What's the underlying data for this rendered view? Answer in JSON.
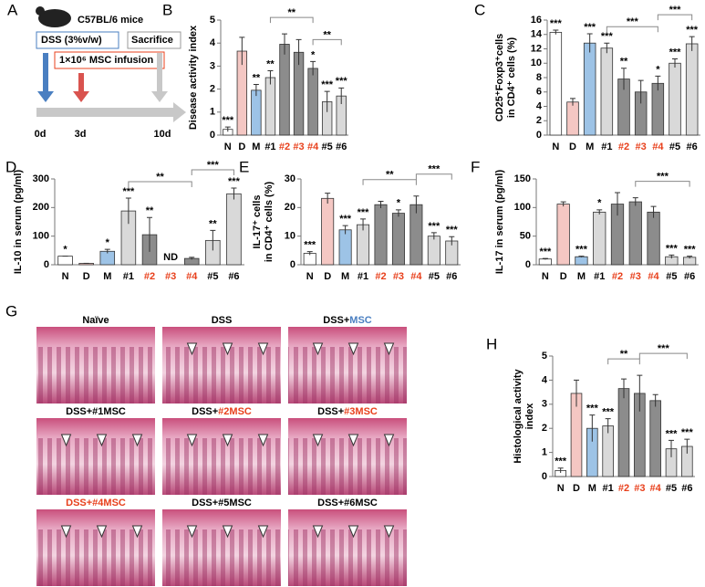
{
  "diagram": {
    "label": "A",
    "strain": "C57BL/6 mice",
    "dss": "DSS (3%v/w)",
    "infusion": "1×10⁶ MSC infusion",
    "end": "Sacrifice",
    "days": [
      "0d",
      "3d",
      "10d"
    ]
  },
  "chart_data": [
    {
      "type": "bar",
      "label": "B",
      "ylabel": [
        "Disease activity index"
      ],
      "categories": [
        "N",
        "D",
        "M",
        "#1",
        "#2",
        "#3",
        "#4",
        "#5",
        "#6"
      ],
      "category_colors": [
        "#000000",
        "#000000",
        "#000000",
        "#000000",
        "#e8401c",
        "#e8401c",
        "#e8401c",
        "#000000",
        "#000000"
      ],
      "colors": [
        "#ffffff",
        "#f4c7c3",
        "#9dc3e6",
        "#d9d9d9",
        "#8c8c8c",
        "#8c8c8c",
        "#8c8c8c",
        "#d9d9d9",
        "#d9d9d9"
      ],
      "values": [
        0.25,
        3.65,
        1.95,
        2.5,
        3.95,
        3.6,
        2.9,
        1.45,
        1.7
      ],
      "errors": [
        0.1,
        0.6,
        0.25,
        0.3,
        0.45,
        0.55,
        0.3,
        0.45,
        0.35
      ],
      "stars": [
        "***",
        null,
        "**",
        "**",
        null,
        null,
        "*",
        "***",
        "***"
      ],
      "brackets": [
        {
          "label": "**",
          "left": "#1",
          "right": "#4"
        },
        {
          "label": "**",
          "left": "#4",
          "right": "#6"
        }
      ],
      "ylim": [
        0,
        5
      ],
      "yticks": [
        0,
        1,
        2,
        3,
        4,
        5
      ]
    },
    {
      "type": "bar",
      "label": "C",
      "ylabel": [
        "CD25⁺Foxp3⁺cells",
        "in CD4⁺ cells (%)"
      ],
      "categories": [
        "N",
        "D",
        "M",
        "#1",
        "#2",
        "#3",
        "#4",
        "#5",
        "#6"
      ],
      "category_colors": [
        "#000000",
        "#000000",
        "#000000",
        "#000000",
        "#e8401c",
        "#e8401c",
        "#e8401c",
        "#000000",
        "#000000"
      ],
      "colors": [
        "#ffffff",
        "#f4c7c3",
        "#9dc3e6",
        "#d9d9d9",
        "#8c8c8c",
        "#8c8c8c",
        "#8c8c8c",
        "#d9d9d9",
        "#d9d9d9"
      ],
      "values": [
        14.3,
        4.6,
        12.8,
        12.1,
        7.8,
        6,
        7.2,
        10,
        12.7
      ],
      "errors": [
        0.3,
        0.5,
        1.3,
        0.7,
        1.5,
        1.6,
        1,
        0.6,
        1
      ],
      "stars": [
        "***",
        null,
        "***",
        "***",
        "**",
        null,
        "*",
        "***",
        "***"
      ],
      "brackets": [
        {
          "label": "***",
          "left": "#1",
          "right": "#4"
        },
        {
          "label": "***",
          "left": "#4",
          "right": "#6"
        }
      ],
      "ylim": [
        0,
        16
      ],
      "yticks": [
        0,
        2,
        4,
        6,
        8,
        10,
        12,
        14,
        16
      ]
    },
    {
      "type": "bar",
      "label": "D",
      "ylabel": [
        "IL-10  in serum (pg/ml)"
      ],
      "categories": [
        "N",
        "D",
        "M",
        "#1",
        "#2",
        "#3",
        "#4",
        "#5",
        "#6"
      ],
      "category_colors": [
        "#000000",
        "#000000",
        "#000000",
        "#000000",
        "#e8401c",
        "#e8401c",
        "#e8401c",
        "#000000",
        "#000000"
      ],
      "colors": [
        "#ffffff",
        "#f4c7c3",
        "#9dc3e6",
        "#d9d9d9",
        "#8c8c8c",
        "#8c8c8c",
        "#8c8c8c",
        "#d9d9d9",
        "#d9d9d9"
      ],
      "values": [
        30,
        5,
        47,
        188,
        105,
        null,
        22,
        85,
        248
      ],
      "errors": [
        0,
        0,
        7,
        45,
        60,
        null,
        4,
        35,
        20
      ],
      "value_labels": [
        null,
        null,
        null,
        null,
        null,
        "ND",
        null,
        null,
        null
      ],
      "stars": [
        "*",
        null,
        "*",
        "***",
        "**",
        null,
        null,
        "**",
        "***"
      ],
      "brackets": [
        {
          "label": "**",
          "left": "#1",
          "right": "#4"
        },
        {
          "label": "***",
          "left": "#4",
          "right": "#6"
        }
      ],
      "ylim": [
        0,
        300
      ],
      "yticks": [
        0,
        100,
        200,
        300
      ]
    },
    {
      "type": "bar",
      "label": "E",
      "ylabel": [
        "IL-17⁺ cells",
        "in CD4⁺ cells (%)"
      ],
      "categories": [
        "N",
        "D",
        "M",
        "#1",
        "#2",
        "#3",
        "#4",
        "#5",
        "#6"
      ],
      "category_colors": [
        "#000000",
        "#000000",
        "#000000",
        "#000000",
        "#e8401c",
        "#e8401c",
        "#e8401c",
        "#000000",
        "#000000"
      ],
      "colors": [
        "#ffffff",
        "#f4c7c3",
        "#9dc3e6",
        "#d9d9d9",
        "#8c8c8c",
        "#8c8c8c",
        "#8c8c8c",
        "#d9d9d9",
        "#d9d9d9"
      ],
      "values": [
        4,
        23.2,
        12.2,
        14,
        21,
        18,
        21,
        10,
        8.3
      ],
      "errors": [
        0.6,
        1.8,
        1.5,
        2,
        1.2,
        1.2,
        3,
        1.2,
        1.5
      ],
      "stars": [
        "***",
        null,
        "***",
        "***",
        null,
        "*",
        null,
        "***",
        "***"
      ],
      "brackets": [
        {
          "label": "**",
          "left": "#1",
          "right": "#4"
        },
        {
          "label": "***",
          "left": "#4",
          "right": "#6"
        }
      ],
      "ylim": [
        0,
        30
      ],
      "yticks": [
        0,
        10,
        20,
        30
      ]
    },
    {
      "type": "bar",
      "label": "F",
      "ylabel": [
        "IL-17  in serum (pg/ml)"
      ],
      "categories": [
        "N",
        "D",
        "M",
        "#1",
        "#2",
        "#3",
        "#4",
        "#5",
        "#6"
      ],
      "category_colors": [
        "#000000",
        "#000000",
        "#000000",
        "#000000",
        "#e8401c",
        "#e8401c",
        "#e8401c",
        "#000000",
        "#000000"
      ],
      "colors": [
        "#ffffff",
        "#f4c7c3",
        "#9dc3e6",
        "#d9d9d9",
        "#8c8c8c",
        "#8c8c8c",
        "#8c8c8c",
        "#d9d9d9",
        "#d9d9d9"
      ],
      "values": [
        10,
        106,
        14,
        92,
        106,
        110,
        92,
        14,
        13
      ],
      "errors": [
        1,
        4,
        1,
        4,
        20,
        7,
        10,
        3,
        2
      ],
      "stars": [
        "***",
        null,
        "***",
        "*",
        null,
        null,
        null,
        "***",
        "***"
      ],
      "brackets": [
        {
          "label": "***",
          "left": "#3",
          "right": "#6"
        }
      ],
      "ylim": [
        0,
        150
      ],
      "yticks": [
        0,
        50,
        100,
        150
      ]
    },
    {
      "type": "bar",
      "label": "H",
      "ylabel": [
        "Histological activity",
        "index"
      ],
      "categories": [
        "N",
        "D",
        "M",
        "#1",
        "#2",
        "#3",
        "#4",
        "#5",
        "#6"
      ],
      "category_colors": [
        "#000000",
        "#000000",
        "#000000",
        "#000000",
        "#e8401c",
        "#e8401c",
        "#e8401c",
        "#000000",
        "#000000"
      ],
      "colors": [
        "#ffffff",
        "#f4c7c3",
        "#9dc3e6",
        "#d9d9d9",
        "#8c8c8c",
        "#8c8c8c",
        "#8c8c8c",
        "#d9d9d9",
        "#d9d9d9"
      ],
      "values": [
        0.25,
        3.45,
        2,
        2.1,
        3.65,
        3.45,
        3.15,
        1.15,
        1.25
      ],
      "errors": [
        0.1,
        0.55,
        0.55,
        0.3,
        0.4,
        0.75,
        0.25,
        0.35,
        0.3
      ],
      "stars": [
        "***",
        null,
        "***",
        "***",
        null,
        null,
        null,
        "***",
        "***"
      ],
      "brackets": [
        {
          "label": "**",
          "left": "#1",
          "right": "#3"
        },
        {
          "label": "***",
          "left": "#3",
          "right": "#6"
        }
      ],
      "ylim": [
        0,
        5
      ],
      "yticks": [
        0,
        1,
        2,
        3,
        4,
        5
      ]
    }
  ],
  "histology": {
    "label": "G",
    "panels": [
      {
        "title": [
          {
            "text": "Naïve"
          }
        ]
      },
      {
        "title": [
          {
            "text": "DSS"
          }
        ]
      },
      {
        "title": [
          {
            "text": "DSS+"
          },
          {
            "text": "MSC",
            "color": "#4a7fc1"
          }
        ]
      },
      {
        "title": [
          {
            "text": "DSS+#1MSC"
          }
        ]
      },
      {
        "title": [
          {
            "text": "DSS+"
          },
          {
            "text": "#2MSC",
            "color": "#e8401c"
          }
        ]
      },
      {
        "title": [
          {
            "text": "DSS+"
          },
          {
            "text": "#3MSC",
            "color": "#e8401c"
          }
        ]
      },
      {
        "title": [
          {
            "text": "DSS+#4MSC",
            "color": "#e8401c"
          }
        ]
      },
      {
        "title": [
          {
            "text": "DSS+#5MSC"
          }
        ]
      },
      {
        "title": [
          {
            "text": "DSS+#6MSC"
          }
        ]
      }
    ]
  }
}
